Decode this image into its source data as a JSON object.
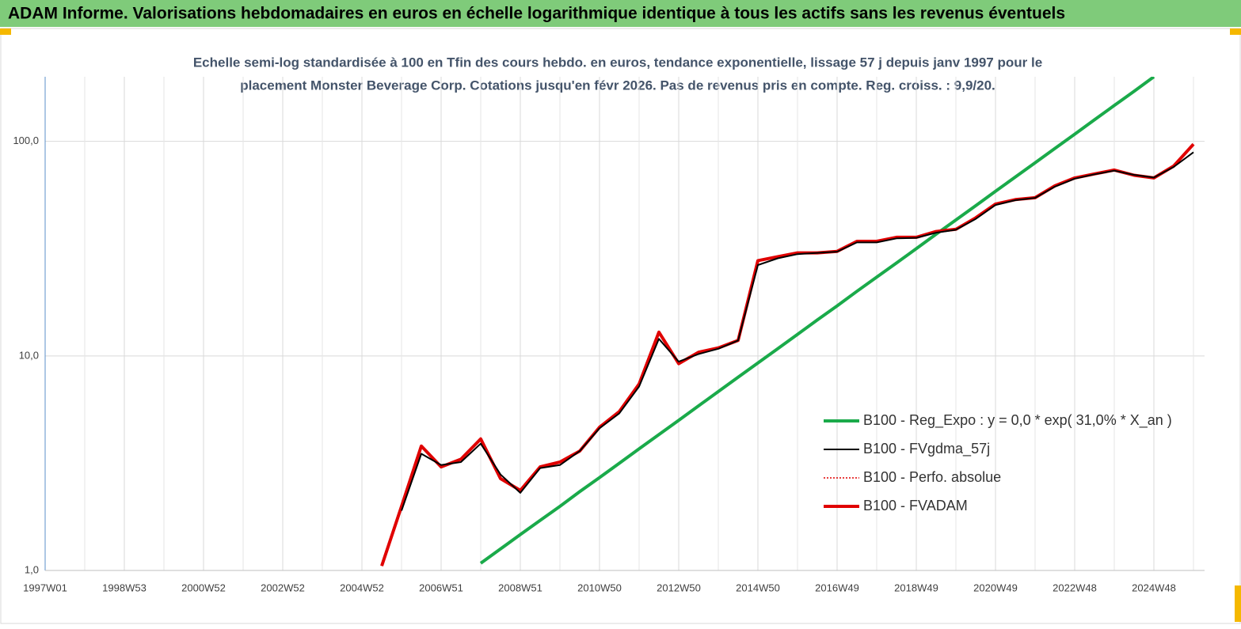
{
  "chart_data": {
    "type": "line",
    "title": "ADAM Informe. Valorisations hebdomadaires en euros en échelle logarithmique identique à tous les actifs sans les revenus éventuels",
    "subtitle": [
      "Echelle semi-log standardisée à 100 en Tfin des cours hebdo. en euros, tendance exponentielle, lissage 57 j depuis janv 1997 pour le",
      "placement Monster Beverage Corp. Cotations jusqu'en févr 2026.  Pas de revenus pris en compte. Reg. croiss. : 9,9/20."
    ],
    "categories": [
      "1997W01",
      null,
      null,
      null,
      "1998W53",
      null,
      null,
      null,
      "2000W52",
      null,
      null,
      null,
      "2002W52",
      null,
      null,
      null,
      "2004W52",
      null,
      null,
      null,
      "2006W51",
      null,
      null,
      null,
      "2008W51",
      null,
      null,
      null,
      "2010W50",
      null,
      null,
      null,
      "2012W50",
      null,
      null,
      null,
      "2014W50",
      null,
      null,
      null,
      "2016W49",
      null,
      null,
      null,
      "2018W49",
      null,
      null,
      null,
      "2020W49",
      null,
      null,
      null,
      "2022W48",
      null,
      null,
      null,
      "2024W48",
      null,
      null
    ],
    "yscale": "log",
    "ylim": [
      1,
      200
    ],
    "yticks": [
      {
        "value": 1,
        "label": "1,0"
      },
      {
        "value": 10,
        "label": "10,0"
      },
      {
        "value": 100,
        "label": "100,0"
      }
    ],
    "grid": true,
    "legend": "lower right",
    "series": [
      {
        "name": "B100 - Reg_Expo : y = 0,0 * exp( 31,0% *  X_an )",
        "color": "#1aaa4a",
        "width": 4,
        "dash": "solid",
        "values": [
          null,
          null,
          null,
          null,
          null,
          null,
          null,
          null,
          null,
          null,
          null,
          null,
          null,
          null,
          null,
          null,
          null,
          null,
          null,
          null,
          null,
          null,
          1.08,
          1.26,
          1.47,
          1.71,
          1.99,
          2.33,
          2.71,
          3.16,
          3.69,
          4.3,
          5.01,
          5.85,
          6.82,
          7.95,
          9.27,
          10.8,
          12.6,
          14.7,
          17.1,
          20.0,
          23.3,
          27.1,
          31.6,
          36.9,
          43.0,
          50.1,
          58.5,
          68.2,
          79.5,
          92.7,
          108,
          126,
          147,
          171,
          200,
          null,
          null
        ]
      },
      {
        "name": "B100 - FVgdma_57j",
        "color": "#000000",
        "width": 2,
        "dash": "solid",
        "values": [
          null,
          null,
          null,
          null,
          null,
          null,
          null,
          null,
          null,
          null,
          null,
          null,
          null,
          null,
          null,
          null,
          null,
          null,
          1.9,
          3.5,
          3.1,
          3.2,
          3.9,
          2.8,
          2.3,
          3.0,
          3.1,
          3.6,
          4.6,
          5.4,
          7.2,
          12.0,
          9.4,
          10.2,
          10.8,
          11.8,
          26.5,
          28.5,
          29.8,
          30.2,
          30.6,
          33.8,
          33.8,
          35.3,
          35.5,
          37.5,
          38.7,
          43.5,
          50.5,
          53.2,
          54.5,
          61.5,
          67.0,
          70.2,
          73.0,
          69.8,
          67.8,
          76.0,
          89
        ]
      },
      {
        "name": "B100 - Perfo. absolue",
        "color": "#e00000",
        "width": 1.5,
        "dash": "dotted",
        "values": [
          null,
          null,
          null,
          null,
          null,
          null,
          null,
          null,
          null,
          null,
          null,
          null,
          null,
          null,
          null,
          null,
          null,
          1.05,
          1.99,
          3.8,
          3.04,
          3.3,
          4.1,
          2.68,
          2.36,
          3.04,
          3.2,
          3.6,
          4.65,
          5.5,
          7.4,
          12.9,
          9.2,
          10.4,
          10.9,
          11.8,
          27.8,
          29,
          30.2,
          30.2,
          30.7,
          34.2,
          34.2,
          35.7,
          35.7,
          38,
          38.9,
          44,
          51,
          53.5,
          54.6,
          62,
          67.5,
          70.5,
          73.5,
          69.5,
          67.5,
          76.7,
          97
        ]
      },
      {
        "name": "B100 - FVADAM",
        "color": "#e00000",
        "width": 4,
        "dash": "solid",
        "values": [
          null,
          null,
          null,
          null,
          null,
          null,
          null,
          null,
          null,
          null,
          null,
          null,
          null,
          null,
          null,
          null,
          null,
          1.05,
          1.99,
          3.8,
          3.04,
          3.3,
          4.1,
          2.68,
          2.36,
          3.04,
          3.2,
          3.6,
          4.65,
          5.5,
          7.4,
          12.9,
          9.2,
          10.4,
          10.9,
          11.8,
          27.8,
          29,
          30.2,
          30.2,
          30.7,
          34.2,
          34.2,
          35.7,
          35.7,
          38,
          38.9,
          44,
          51,
          53.5,
          54.6,
          62,
          67.5,
          70.5,
          73.5,
          69.5,
          67.5,
          76.7,
          97
        ]
      }
    ]
  }
}
